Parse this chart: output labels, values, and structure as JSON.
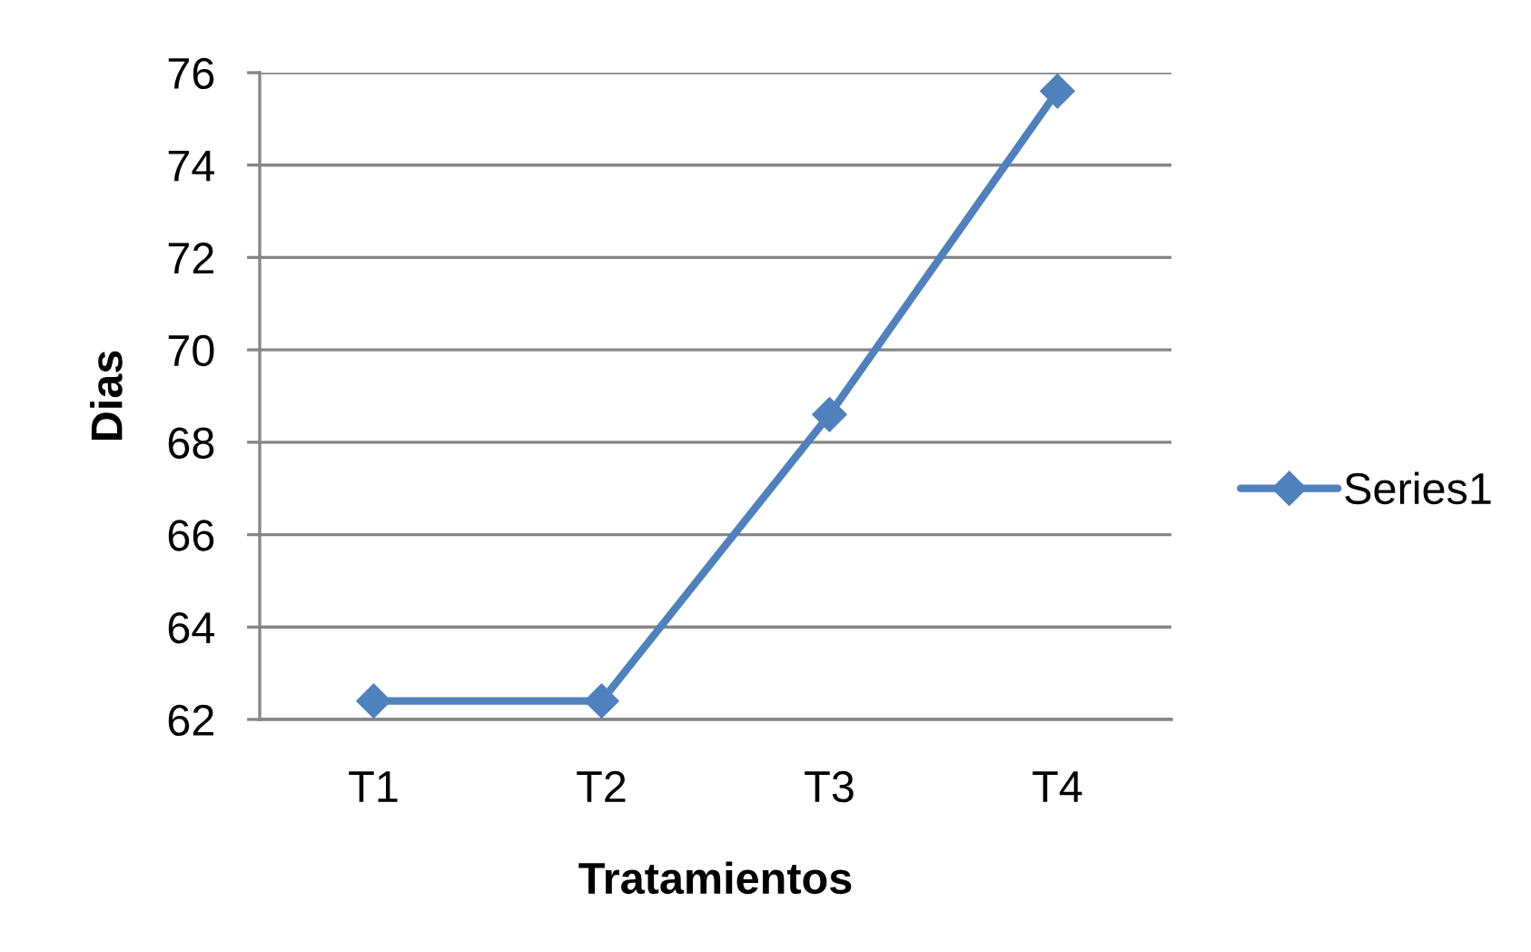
{
  "chart_data": {
    "type": "line",
    "xlabel": "Tratamientos",
    "ylabel": "Dias",
    "categories": [
      "T1",
      "T2",
      "T3",
      "T4"
    ],
    "series": [
      {
        "name": "Series1",
        "color": "#4f81bd",
        "values": [
          62.4,
          62.4,
          68.6,
          75.6
        ]
      }
    ],
    "ylim": [
      62,
      76
    ],
    "yticks": [
      62,
      64,
      66,
      68,
      70,
      72,
      74,
      76
    ],
    "grid": "y",
    "legend": "right",
    "marker": "diamond",
    "line_style": "solid"
  }
}
